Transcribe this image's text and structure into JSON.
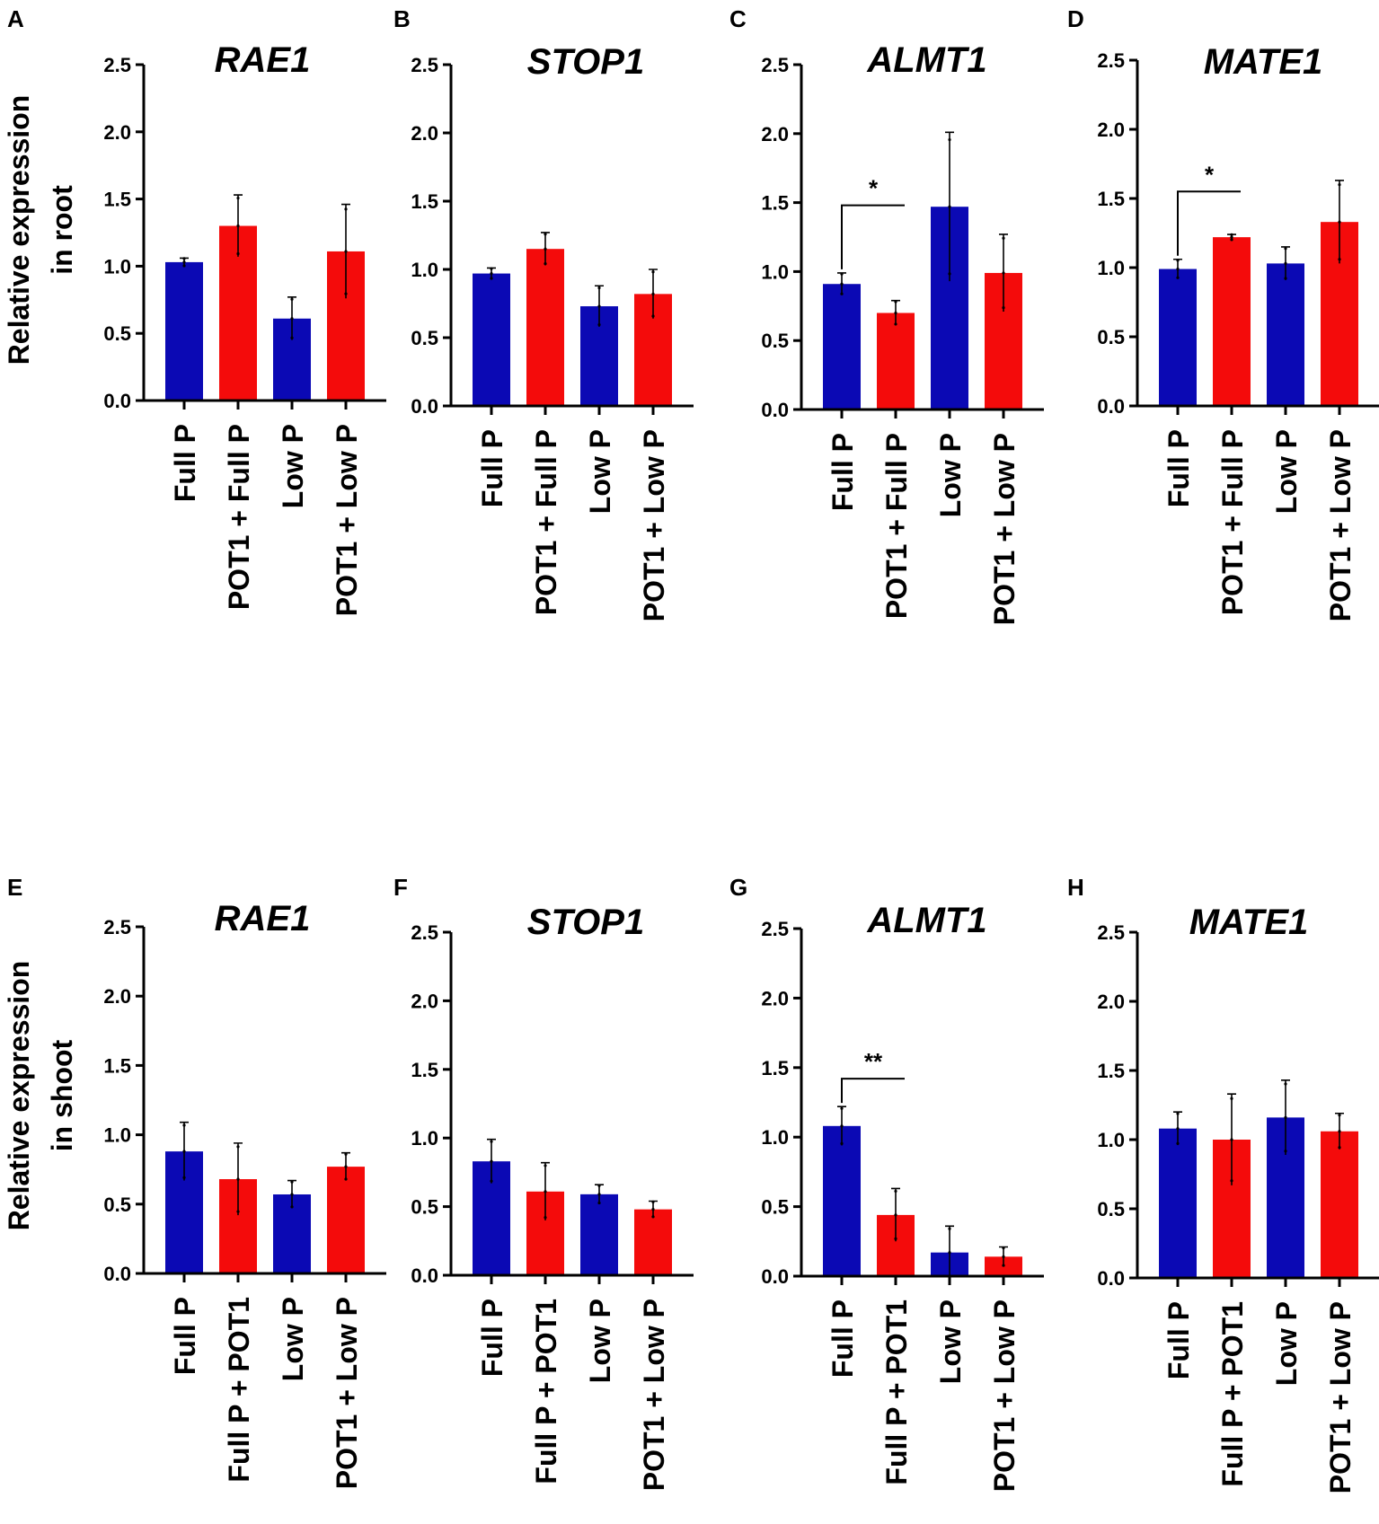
{
  "figure": {
    "colors": {
      "blue": "#0b09b4",
      "red": "#f40b0b",
      "axis": "#000000"
    },
    "row_labels": {
      "root": [
        "Relative expression",
        "in root"
      ],
      "shoot": [
        "Relative expression",
        "in shoot"
      ]
    }
  },
  "chart_data": [
    {
      "type": "bar",
      "panel": "A",
      "title": "RAE1",
      "ylabel": "Relative expression in root",
      "ylim": [
        0,
        2.5
      ],
      "yticks": [
        "0.0",
        "0.5",
        "1.0",
        "1.5",
        "2.0",
        "2.5"
      ],
      "categories": [
        "Full P",
        "POT1 + Full P",
        "Low P",
        "POT1 + Low P"
      ],
      "values": [
        1.03,
        1.3,
        0.61,
        1.11
      ],
      "errors": [
        0.03,
        0.23,
        0.16,
        0.35
      ],
      "bar_colors": [
        "blue",
        "red",
        "blue",
        "red"
      ],
      "significance": []
    },
    {
      "type": "bar",
      "panel": "B",
      "title": "STOP1",
      "ylabel": "",
      "ylim": [
        0,
        2.5
      ],
      "yticks": [
        "0.0",
        "0.5",
        "1.0",
        "1.5",
        "2.0",
        "2.5"
      ],
      "categories": [
        "Full P",
        "POT1 + Full P",
        "Low P",
        "POT1 + Low P"
      ],
      "values": [
        0.97,
        1.15,
        0.73,
        0.82
      ],
      "errors": [
        0.04,
        0.12,
        0.15,
        0.18
      ],
      "bar_colors": [
        "blue",
        "red",
        "blue",
        "red"
      ],
      "significance": []
    },
    {
      "type": "bar",
      "panel": "C",
      "title": "ALMT1",
      "ylabel": "",
      "ylim": [
        0,
        2.5
      ],
      "yticks": [
        "0.0",
        "0.5",
        "1.0",
        "1.5",
        "2.0",
        "2.5"
      ],
      "categories": [
        "Full P",
        "POT1 + Full P",
        "Low P",
        "POT1 + Low P"
      ],
      "values": [
        0.91,
        0.7,
        1.47,
        0.99
      ],
      "errors": [
        0.08,
        0.09,
        0.54,
        0.28
      ],
      "bar_colors": [
        "blue",
        "red",
        "blue",
        "red"
      ],
      "significance": [
        {
          "from": 0,
          "to": 1,
          "label": "*",
          "y": 1.48
        }
      ]
    },
    {
      "type": "bar",
      "panel": "D",
      "title": "MATE1",
      "ylabel": "",
      "ylim": [
        0,
        2.5
      ],
      "yticks": [
        "0.0",
        "0.5",
        "1.0",
        "1.5",
        "2.0",
        "2.5"
      ],
      "categories": [
        "Full P",
        "POT1 + Full P",
        "Low P",
        "POT1 + Low P"
      ],
      "values": [
        0.99,
        1.22,
        1.03,
        1.33
      ],
      "errors": [
        0.07,
        0.02,
        0.12,
        0.3
      ],
      "bar_colors": [
        "blue",
        "red",
        "blue",
        "red"
      ],
      "significance": [
        {
          "from": 0,
          "to": 1,
          "label": "*",
          "y": 1.55
        }
      ]
    },
    {
      "type": "bar",
      "panel": "E",
      "title": "RAE1",
      "ylabel": "Relative expression in shoot",
      "ylim": [
        0,
        2.5
      ],
      "yticks": [
        "0.0",
        "0.5",
        "1.0",
        "1.5",
        "2.0",
        "2.5"
      ],
      "categories": [
        "Full P",
        "Full P + POT1",
        "Low P",
        "POT1 + Low P"
      ],
      "values": [
        0.88,
        0.68,
        0.57,
        0.77
      ],
      "errors": [
        0.21,
        0.26,
        0.1,
        0.1
      ],
      "bar_colors": [
        "blue",
        "red",
        "blue",
        "red"
      ],
      "significance": []
    },
    {
      "type": "bar",
      "panel": "F",
      "title": "STOP1",
      "ylabel": "",
      "ylim": [
        0,
        2.5
      ],
      "yticks": [
        "0.0",
        "0.5",
        "1.0",
        "1.5",
        "2.0",
        "2.5"
      ],
      "categories": [
        "Full P",
        "Full P + POT1",
        "Low P",
        "POT1 + Low P"
      ],
      "values": [
        0.83,
        0.61,
        0.59,
        0.48
      ],
      "errors": [
        0.16,
        0.21,
        0.07,
        0.06
      ],
      "bar_colors": [
        "blue",
        "red",
        "blue",
        "red"
      ],
      "significance": []
    },
    {
      "type": "bar",
      "panel": "G",
      "title": "ALMT1",
      "ylabel": "",
      "ylim": [
        0,
        2.5
      ],
      "yticks": [
        "0.0",
        "0.5",
        "1.0",
        "1.5",
        "2.0",
        "2.5"
      ],
      "categories": [
        "Full P",
        "Full P + POT1",
        "Low P",
        "POT1 + Low P"
      ],
      "values": [
        1.08,
        0.44,
        0.17,
        0.14
      ],
      "errors": [
        0.14,
        0.19,
        0.19,
        0.07
      ],
      "bar_colors": [
        "blue",
        "red",
        "blue",
        "red"
      ],
      "significance": [
        {
          "from": 0,
          "to": 1,
          "label": "**",
          "y": 1.42
        }
      ]
    },
    {
      "type": "bar",
      "panel": "H",
      "title": "MATE1",
      "ylabel": "",
      "ylim": [
        0,
        2.5
      ],
      "yticks": [
        "0.0",
        "0.5",
        "1.0",
        "1.5",
        "2.0",
        "2.5"
      ],
      "categories": [
        "Full P",
        "Full P + POT1",
        "Low P",
        "POT1 + Low P"
      ],
      "values": [
        1.08,
        1.0,
        1.16,
        1.06
      ],
      "errors": [
        0.12,
        0.33,
        0.27,
        0.13
      ],
      "bar_colors": [
        "blue",
        "red",
        "blue",
        "red"
      ],
      "significance": []
    }
  ]
}
